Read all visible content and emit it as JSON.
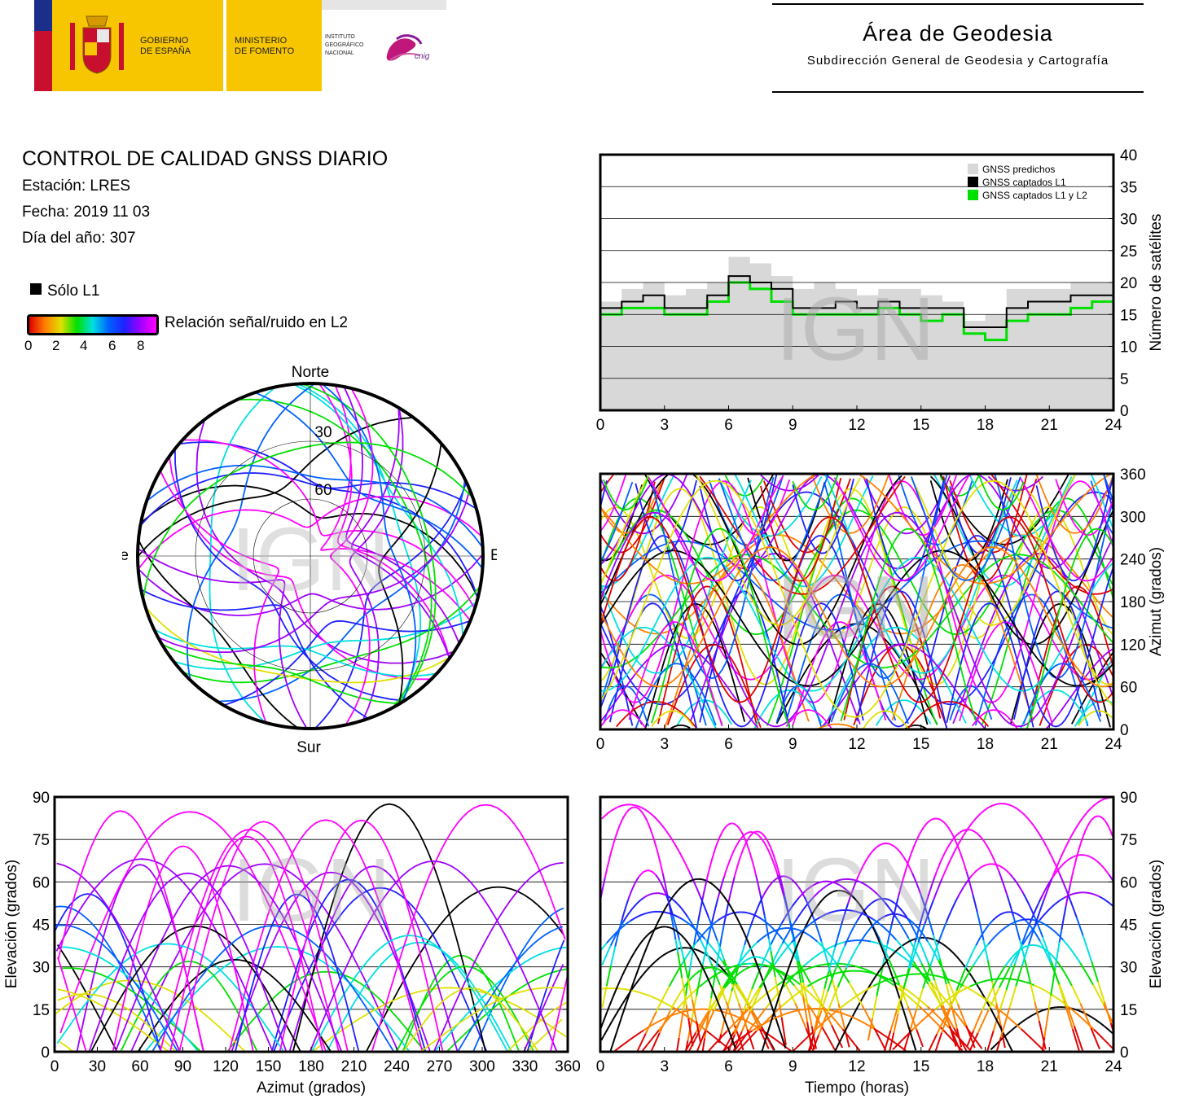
{
  "header": {
    "gov_line1": "GOBIERNO",
    "gov_line2": "DE ESPAÑA",
    "min_line1": "MINISTERIO",
    "min_line2": "DE FOMENTO",
    "ign_line1": "INSTITUTO",
    "ign_line2": "GEOGRÁFICO",
    "ign_line3": "NACIONAL",
    "cnig_text": "cnig",
    "area_title": "Área de Geodesia",
    "area_subtitle": "Subdirección General de Geodesia y Cartografía"
  },
  "report": {
    "title": "CONTROL DE CALIDAD GNSS DIARIO",
    "station": "Estación: LRES",
    "date": "Fecha: 2019 11 03",
    "doy": "Día del año: 307"
  },
  "legend": {
    "l1_only": "Sólo L1",
    "snr_label": "Relación señal/ruido en L2",
    "snr_ticks": [
      "0",
      "2",
      "4",
      "6",
      "8"
    ],
    "colors": [
      "#e00000",
      "#ff8000",
      "#e0e000",
      "#00e000",
      "#00e0e0",
      "#0060ff",
      "#2020ff",
      "#a000ff",
      "#ff00ff"
    ]
  },
  "watermark": "IGN",
  "chart_data": [
    {
      "type": "area",
      "id": "satellite-count",
      "xlabel": "",
      "ylabel": "Número de satélites",
      "xlim": [
        0,
        24
      ],
      "ylim": [
        0,
        40
      ],
      "xticks": [
        "0",
        "3",
        "6",
        "9",
        "12",
        "15",
        "18",
        "21",
        "24"
      ],
      "yticks": [
        "0",
        "5",
        "10",
        "15",
        "20",
        "25",
        "30",
        "35",
        "40"
      ],
      "grid": true,
      "legend_position": "top-right",
      "x": [
        0,
        1,
        2,
        3,
        4,
        5,
        6,
        7,
        8,
        9,
        10,
        11,
        12,
        13,
        14,
        15,
        16,
        17,
        18,
        19,
        20,
        21,
        22,
        23,
        24
      ],
      "series": [
        {
          "name": "GNSS predichos",
          "color": "#d8d8d8",
          "values": [
            17,
            19,
            20,
            18,
            19,
            20,
            24,
            23,
            21,
            19,
            20,
            19,
            18,
            19,
            19,
            18,
            17,
            14,
            15,
            19,
            19,
            19,
            20,
            20,
            19
          ]
        },
        {
          "name": "GNSS captados L1",
          "color": "#000000",
          "values": [
            16,
            17,
            18,
            16,
            16,
            18,
            21,
            20,
            19,
            16,
            16,
            17,
            16,
            17,
            16,
            16,
            16,
            13,
            13,
            16,
            17,
            17,
            18,
            18,
            17
          ]
        },
        {
          "name": "GNSS captados L1 y L2",
          "color": "#00e000",
          "values": [
            15,
            16,
            16,
            15,
            15,
            17,
            20,
            19,
            17,
            15,
            15,
            15,
            15,
            16,
            15,
            14,
            15,
            12,
            11,
            14,
            15,
            15,
            16,
            17,
            16
          ]
        }
      ]
    },
    {
      "type": "scatter",
      "id": "sky-plot",
      "labels": {
        "north": "Norte",
        "south": "Sur",
        "west": "Oeste",
        "east": "Este"
      },
      "ring_labels": [
        "30",
        "60"
      ]
    },
    {
      "type": "scatter",
      "id": "azimuth-time",
      "xlabel": "",
      "ylabel": "Azimut (grados)",
      "xlim": [
        0,
        24
      ],
      "ylim": [
        0,
        360
      ],
      "xticks": [
        "0",
        "3",
        "6",
        "9",
        "12",
        "15",
        "18",
        "21",
        "24"
      ],
      "yticks": [
        "0",
        "60",
        "120",
        "180",
        "240",
        "300",
        "360"
      ],
      "grid": true
    },
    {
      "type": "scatter",
      "id": "elevation-azimuth",
      "xlabel": "Azimut (grados)",
      "ylabel": "Elevación (grados)",
      "xlim": [
        0,
        360
      ],
      "ylim": [
        0,
        90
      ],
      "xticks": [
        "0",
        "30",
        "60",
        "90",
        "120",
        "150",
        "180",
        "210",
        "240",
        "270",
        "300",
        "330",
        "360"
      ],
      "yticks": [
        "0",
        "15",
        "30",
        "45",
        "60",
        "75",
        "90"
      ],
      "grid": true
    },
    {
      "type": "scatter",
      "id": "elevation-time",
      "xlabel": "Tiempo (horas)",
      "ylabel": "Elevación (grados)",
      "xlim": [
        0,
        24
      ],
      "ylim": [
        0,
        90
      ],
      "xticks": [
        "0",
        "3",
        "6",
        "9",
        "12",
        "15",
        "18",
        "21",
        "24"
      ],
      "yticks": [
        "0",
        "15",
        "30",
        "45",
        "60",
        "75",
        "90"
      ],
      "grid": true
    }
  ]
}
